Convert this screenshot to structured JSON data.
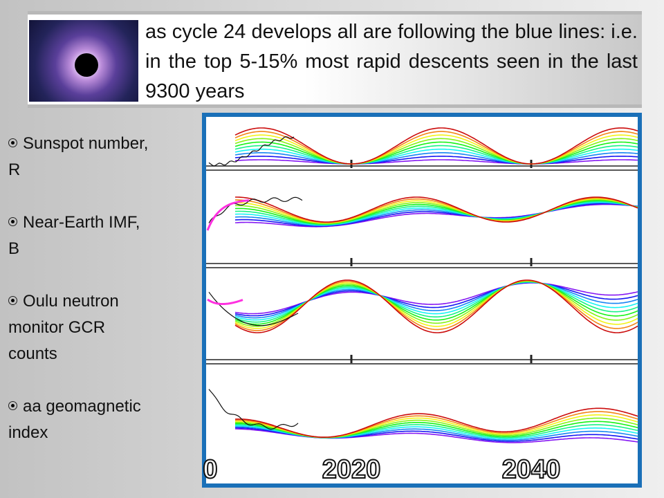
{
  "title": "as cycle 24 develops all are following the blue lines: i.e. in the top 5-15% most rapid descents seen in the last 9300 years",
  "bullets": [
    "Sunspot number, R",
    "Near-Earth IMF, B",
    "Oulu neutron monitor GCR counts",
    "aa geomagnetic index"
  ],
  "figure": {
    "x_labels": [
      "0",
      "2020",
      "2040"
    ]
  }
}
